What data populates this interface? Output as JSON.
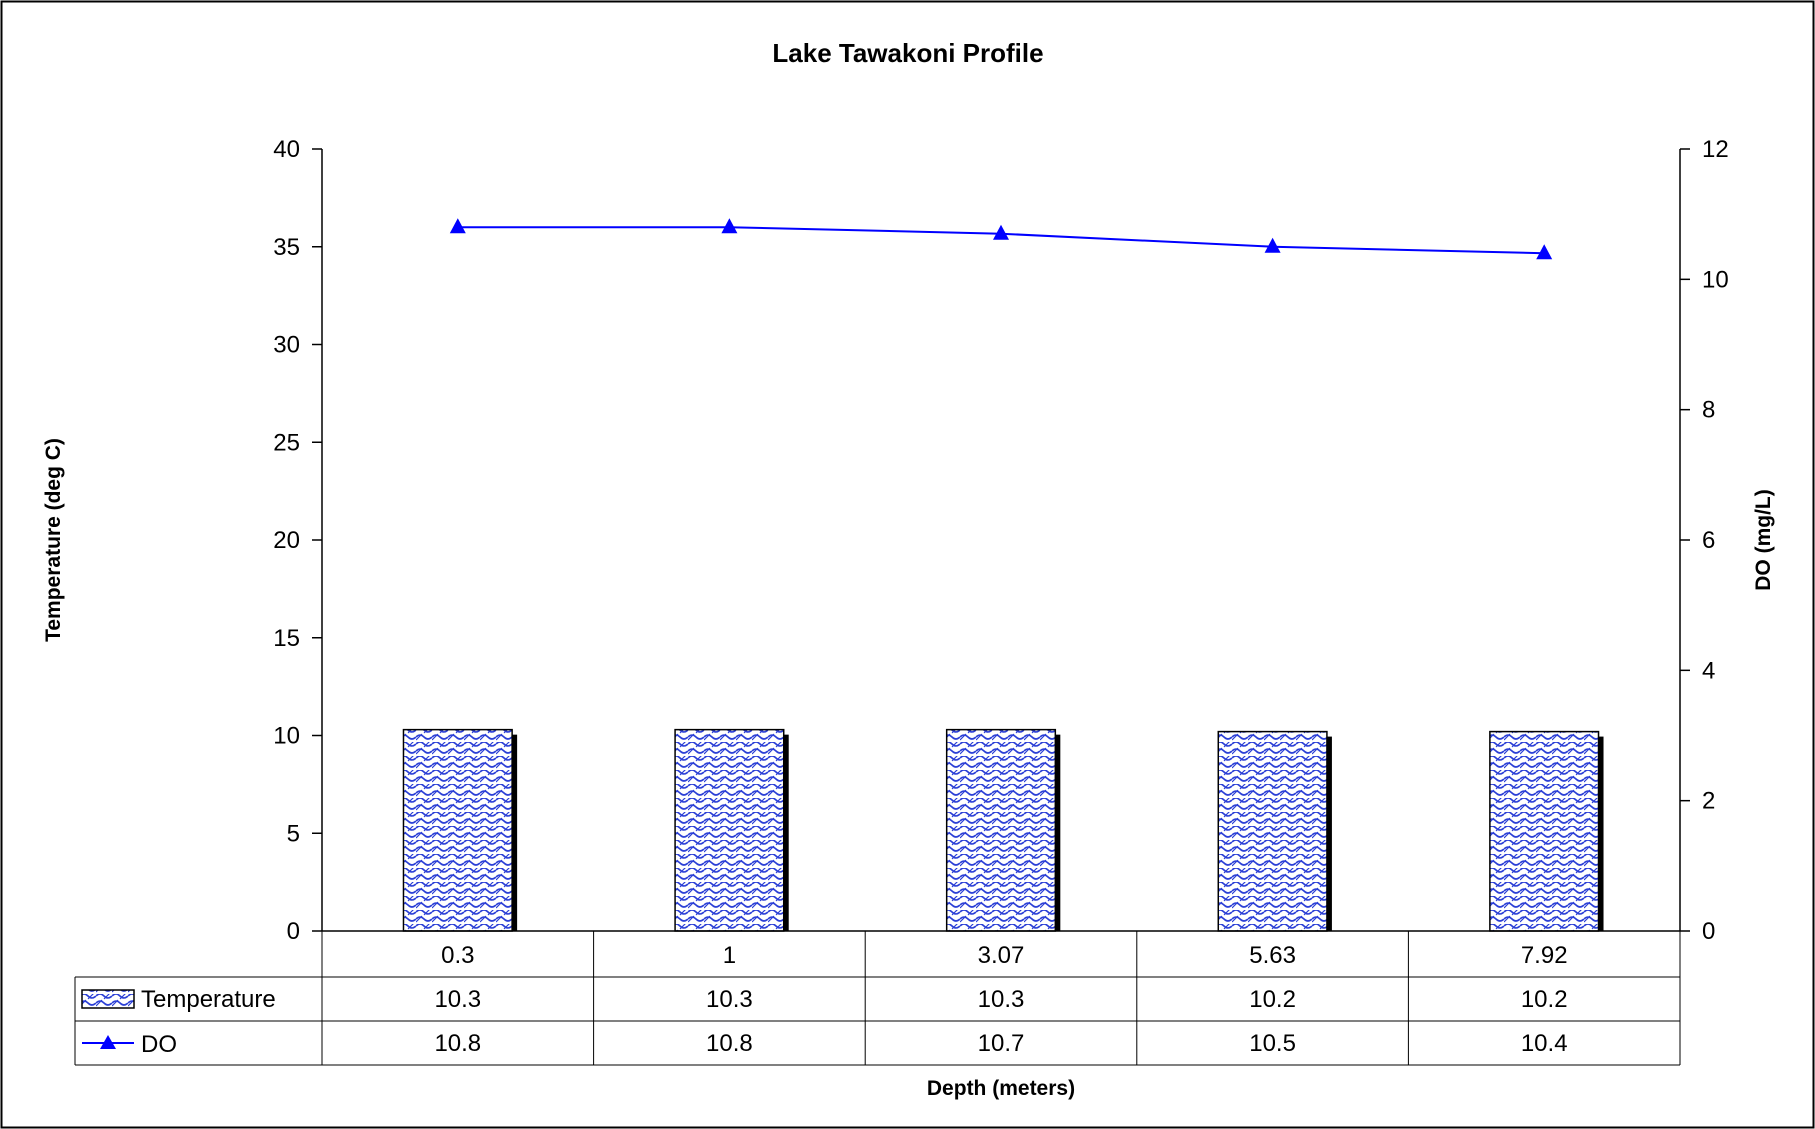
{
  "chart_data": {
    "type": "bar",
    "title": "Lake Tawakoni Profile",
    "xlabel": "Depth (meters)",
    "ylabel": "Temperature (deg C)",
    "y2label": "DO (mg/L)",
    "categories": [
      "0.3",
      "1",
      "3.07",
      "5.63",
      "7.92"
    ],
    "ylim": [
      0,
      40
    ],
    "y_ticks": [
      "0",
      "5",
      "10",
      "15",
      "20",
      "25",
      "30",
      "35",
      "40"
    ],
    "y2lim": [
      0,
      12
    ],
    "y2_ticks": [
      "0",
      "2",
      "4",
      "6",
      "8",
      "10",
      "12"
    ],
    "legend": "data-table",
    "grid": false,
    "series": [
      {
        "name": "Temperature",
        "type": "bar",
        "axis": "left",
        "values": [
          10.3,
          10.3,
          10.3,
          10.2,
          10.2
        ],
        "color": "#2b3fd6",
        "table_values": [
          "10.3",
          "10.3",
          "10.3",
          "10.2",
          "10.2"
        ]
      },
      {
        "name": "DO",
        "type": "line",
        "axis": "right",
        "marker": "triangle",
        "values": [
          10.8,
          10.8,
          10.7,
          10.5,
          10.4
        ],
        "color": "#0000ff",
        "table_values": [
          "10.8",
          "10.8",
          "10.7",
          "10.5",
          "10.4"
        ]
      }
    ]
  }
}
